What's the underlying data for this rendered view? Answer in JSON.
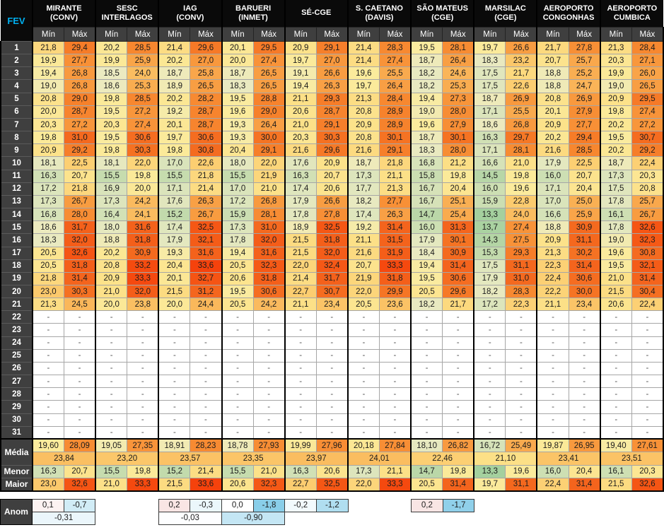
{
  "header": {
    "month_label": "FEV",
    "min_label": "Mín",
    "max_label": "Máx",
    "stations": [
      {
        "lines": [
          "MIRANTE",
          "(CONV)"
        ]
      },
      {
        "lines": [
          "SESC",
          "INTERLAGOS"
        ]
      },
      {
        "lines": [
          "IAG",
          "(CONV)"
        ]
      },
      {
        "lines": [
          "BARUERI",
          "(INMET)"
        ]
      },
      {
        "lines": [
          "SÉ-CGE"
        ]
      },
      {
        "lines": [
          "S. CAETANO",
          "(DAVIS)"
        ]
      },
      {
        "lines": [
          "SÃO MATEUS",
          "(CGE)"
        ]
      },
      {
        "lines": [
          "MARSILAC",
          "(CGE)"
        ]
      },
      {
        "lines": [
          "AEROPORTO",
          "CONGONHAS"
        ]
      },
      {
        "lines": [
          "AEROPORTO",
          "CUMBICA"
        ]
      }
    ]
  },
  "dash": "-",
  "rows": [
    {
      "d": "1",
      "v": [
        "21,8",
        "29,4",
        "20,2",
        "28,5",
        "21,4",
        "29,6",
        "20,1",
        "29,5",
        "20,9",
        "29,1",
        "21,4",
        "28,3",
        "19,5",
        "28,1",
        "19,7",
        "26,6",
        "21,7",
        "27,8",
        "21,3",
        "28,4"
      ]
    },
    {
      "d": "2",
      "v": [
        "19,9",
        "27,7",
        "19,9",
        "25,9",
        "20,2",
        "27,0",
        "20,0",
        "27,4",
        "19,7",
        "27,0",
        "21,4",
        "27,4",
        "18,7",
        "26,4",
        "18,3",
        "23,2",
        "20,7",
        "25,7",
        "20,3",
        "27,1"
      ]
    },
    {
      "d": "3",
      "v": [
        "19,4",
        "26,8",
        "18,5",
        "24,0",
        "18,7",
        "25,8",
        "18,7",
        "26,5",
        "19,1",
        "26,6",
        "19,6",
        "25,5",
        "18,2",
        "24,6",
        "17,5",
        "21,7",
        "18,8",
        "25,2",
        "19,9",
        "26,0"
      ]
    },
    {
      "d": "4",
      "v": [
        "19,0",
        "26,8",
        "18,6",
        "25,3",
        "18,9",
        "26,5",
        "18,3",
        "26,5",
        "19,4",
        "26,3",
        "19,7",
        "26,4",
        "18,2",
        "25,3",
        "17,5",
        "22,6",
        "18,8",
        "24,7",
        "19,0",
        "26,5"
      ]
    },
    {
      "d": "5",
      "v": [
        "20,8",
        "29,0",
        "19,8",
        "28,5",
        "20,2",
        "28,2",
        "19,5",
        "28,8",
        "21,1",
        "29,3",
        "21,3",
        "28,4",
        "19,4",
        "27,3",
        "18,7",
        "26,9",
        "20,8",
        "26,9",
        "20,9",
        "29,5"
      ]
    },
    {
      "d": "6",
      "v": [
        "20,0",
        "28,7",
        "19,5",
        "27,2",
        "19,2",
        "28,7",
        "19,6",
        "29,0",
        "20,6",
        "28,7",
        "20,8",
        "28,9",
        "19,0",
        "28,0",
        "17,1",
        "25,5",
        "20,1",
        "27,9",
        "19,8",
        "27,4"
      ]
    },
    {
      "d": "7",
      "v": [
        "20,3",
        "27,2",
        "20,3",
        "27,4",
        "20,1",
        "28,7",
        "19,3",
        "26,4",
        "21,0",
        "29,1",
        "20,9",
        "28,9",
        "19,6",
        "27,9",
        "18,6",
        "26,8",
        "20,9",
        "27,7",
        "20,2",
        "27,2"
      ]
    },
    {
      "d": "8",
      "v": [
        "19,8",
        "31,0",
        "19,5",
        "30,6",
        "19,7",
        "30,6",
        "19,3",
        "30,0",
        "20,3",
        "30,3",
        "20,8",
        "30,1",
        "18,7",
        "30,1",
        "16,3",
        "29,7",
        "20,2",
        "29,4",
        "19,5",
        "30,7"
      ]
    },
    {
      "d": "9",
      "v": [
        "20,9",
        "29,2",
        "19,8",
        "30,3",
        "19,8",
        "30,8",
        "20,4",
        "29,1",
        "21,6",
        "29,6",
        "21,6",
        "29,1",
        "18,3",
        "28,0",
        "17,1",
        "28,1",
        "21,6",
        "28,5",
        "20,2",
        "29,2"
      ]
    },
    {
      "d": "10",
      "v": [
        "18,1",
        "22,5",
        "18,1",
        "22,0",
        "17,0",
        "22,6",
        "18,0",
        "22,0",
        "17,6",
        "20,9",
        "18,7",
        "21,8",
        "16,8",
        "21,2",
        "16,6",
        "21,0",
        "17,9",
        "22,5",
        "18,7",
        "22,4"
      ]
    },
    {
      "d": "11",
      "v": [
        "16,3",
        "20,7",
        "15,5",
        "19,8",
        "15,5",
        "21,8",
        "15,5",
        "21,9",
        "16,3",
        "20,7",
        "17,3",
        "21,1",
        "15,8",
        "19,8",
        "14,5",
        "19,8",
        "16,0",
        "20,7",
        "17,3",
        "20,3"
      ]
    },
    {
      "d": "12",
      "v": [
        "17,2",
        "21,8",
        "16,9",
        "20,0",
        "17,1",
        "21,4",
        "17,0",
        "21,0",
        "17,4",
        "20,6",
        "17,7",
        "21,3",
        "16,7",
        "20,4",
        "16,0",
        "19,6",
        "17,1",
        "20,4",
        "17,5",
        "20,8"
      ]
    },
    {
      "d": "13",
      "v": [
        "17,3",
        "26,7",
        "17,3",
        "24,2",
        "17,6",
        "26,3",
        "17,2",
        "26,8",
        "17,9",
        "26,6",
        "18,2",
        "27,7",
        "16,7",
        "25,1",
        "15,9",
        "22,8",
        "17,0",
        "25,0",
        "17,8",
        "25,7"
      ]
    },
    {
      "d": "14",
      "v": [
        "16,8",
        "28,0",
        "16,4",
        "24,1",
        "15,2",
        "26,7",
        "15,9",
        "28,1",
        "17,8",
        "27,8",
        "17,4",
        "26,3",
        "14,7",
        "25,4",
        "13,3",
        "24,0",
        "16,6",
        "25,9",
        "16,1",
        "26,7"
      ]
    },
    {
      "d": "15",
      "v": [
        "18,6",
        "31,7",
        "18,0",
        "31,6",
        "17,4",
        "32,5",
        "17,3",
        "31,0",
        "18,9",
        "32,5",
        "19,2",
        "31,4",
        "16,0",
        "31,3",
        "13,7",
        "27,4",
        "18,8",
        "30,9",
        "17,8",
        "32,6"
      ]
    },
    {
      "d": "16",
      "v": [
        "18,3",
        "32,0",
        "18,8",
        "31,8",
        "17,9",
        "32,1",
        "17,8",
        "32,0",
        "21,5",
        "31,8",
        "21,1",
        "31,5",
        "17,9",
        "30,1",
        "14,3",
        "27,5",
        "20,9",
        "31,1",
        "19,0",
        "32,3"
      ]
    },
    {
      "d": "17",
      "v": [
        "20,5",
        "32,6",
        "20,2",
        "30,9",
        "19,3",
        "31,6",
        "19,4",
        "31,6",
        "21,5",
        "32,0",
        "21,6",
        "31,9",
        "18,4",
        "30,9",
        "15,3",
        "29,3",
        "21,3",
        "30,2",
        "19,6",
        "30,8"
      ]
    },
    {
      "d": "18",
      "v": [
        "20,5",
        "31,8",
        "20,8",
        "33,2",
        "20,4",
        "33,6",
        "20,5",
        "32,3",
        "22,0",
        "32,4",
        "20,7",
        "33,3",
        "19,4",
        "31,4",
        "17,5",
        "31,1",
        "22,3",
        "31,4",
        "19,5",
        "32,1"
      ]
    },
    {
      "d": "19",
      "v": [
        "21,8",
        "31,4",
        "20,9",
        "33,3",
        "20,1",
        "32,7",
        "20,6",
        "31,8",
        "21,4",
        "31,7",
        "21,9",
        "31,8",
        "19,5",
        "30,6",
        "17,9",
        "31,0",
        "22,4",
        "30,6",
        "21,0",
        "31,4"
      ]
    },
    {
      "d": "20",
      "v": [
        "23,0",
        "30,3",
        "21,0",
        "32,0",
        "21,5",
        "31,2",
        "19,5",
        "30,6",
        "22,7",
        "30,7",
        "22,0",
        "29,9",
        "20,5",
        "29,6",
        "18,2",
        "28,3",
        "22,2",
        "30,0",
        "21,5",
        "30,4"
      ]
    },
    {
      "d": "21",
      "v": [
        "21,3",
        "24,5",
        "20,0",
        "23,8",
        "20,0",
        "24,4",
        "20,5",
        "24,2",
        "21,1",
        "23,4",
        "20,5",
        "23,6",
        "18,2",
        "21,7",
        "17,2",
        "22,3",
        "21,1",
        "23,4",
        "20,6",
        "22,4"
      ]
    },
    {
      "d": "22",
      "v": null
    },
    {
      "d": "23",
      "v": null
    },
    {
      "d": "24",
      "v": null
    },
    {
      "d": "25",
      "v": null
    },
    {
      "d": "26",
      "v": null
    },
    {
      "d": "27",
      "v": null
    },
    {
      "d": "28",
      "v": null
    },
    {
      "d": "29",
      "v": null
    },
    {
      "d": "30",
      "v": null
    },
    {
      "d": "31",
      "v": null
    }
  ],
  "summary": {
    "media_label": "Média",
    "menor_label": "Menor",
    "maior_label": "Maior",
    "media_pairs": [
      [
        "19,60",
        "28,09"
      ],
      [
        "19,05",
        "27,35"
      ],
      [
        "18,91",
        "28,23"
      ],
      [
        "18,78",
        "27,93"
      ],
      [
        "19,99",
        "27,96"
      ],
      [
        "20,18",
        "27,84"
      ],
      [
        "18,10",
        "26,82"
      ],
      [
        "16,72",
        "25,49"
      ],
      [
        "19,87",
        "26,95"
      ],
      [
        "19,40",
        "27,61"
      ]
    ],
    "media_overall": [
      "23,84",
      "23,20",
      "23,57",
      "23,35",
      "23,97",
      "24,01",
      "22,46",
      "21,10",
      "23,41",
      "23,51"
    ],
    "menor": [
      [
        "16,3",
        "20,7"
      ],
      [
        "15,5",
        "19,8"
      ],
      [
        "15,2",
        "21,4"
      ],
      [
        "15,5",
        "21,0"
      ],
      [
        "16,3",
        "20,6"
      ],
      [
        "17,3",
        "21,1"
      ],
      [
        "14,7",
        "19,8"
      ],
      [
        "13,3",
        "19,6"
      ],
      [
        "16,0",
        "20,4"
      ],
      [
        "16,1",
        "20,3"
      ]
    ],
    "maior": [
      [
        "23,0",
        "32,6"
      ],
      [
        "21,0",
        "33,3"
      ],
      [
        "21,5",
        "33,6"
      ],
      [
        "20,6",
        "32,3"
      ],
      [
        "22,7",
        "32,5"
      ],
      [
        "22,0",
        "33,3"
      ],
      [
        "20,5",
        "31,4"
      ],
      [
        "19,7",
        "31,1"
      ],
      [
        "22,4",
        "31,4"
      ],
      [
        "21,5",
        "32,6"
      ]
    ]
  },
  "anomaly": {
    "label": "Anom",
    "groups": [
      {
        "station": 0,
        "min": "0,1",
        "max": "-0,7",
        "mean": "-0,31"
      },
      {
        "station": 2,
        "min": "0,2",
        "max": "-0,3",
        "mean": "-0,03"
      },
      {
        "station": 3,
        "min": "0,0",
        "max": "-1,8",
        "mean": "-0,90"
      },
      {
        "station": 4,
        "min": "-0,2",
        "max": "-1,2",
        "mean": null
      },
      {
        "station": 6,
        "min": "0,2",
        "max": "-1,7",
        "mean": null
      }
    ]
  },
  "colors": {
    "fev_accent": "#00B0F0",
    "header_bg": "#0a0a0a",
    "label_bg": "#3F3F3F",
    "grid_line": "#A6A6A6",
    "temp_scale": [
      [
        13.0,
        "#9FCE9C"
      ],
      [
        15.0,
        "#BFD9AA"
      ],
      [
        17.0,
        "#DAE4BB"
      ],
      [
        18.5,
        "#EBEAC1"
      ],
      [
        19.6,
        "#FBEB9C"
      ],
      [
        21.0,
        "#FCE189"
      ],
      [
        22.5,
        "#FCCF72"
      ],
      [
        24.0,
        "#FABD60"
      ],
      [
        25.5,
        "#F9AA4E"
      ],
      [
        27.0,
        "#F8983D"
      ],
      [
        28.5,
        "#F7872F"
      ],
      [
        30.0,
        "#F57424"
      ],
      [
        31.5,
        "#F4631C"
      ],
      [
        32.8,
        "#F55313"
      ],
      [
        33.8,
        "#F53E0A"
      ]
    ],
    "anom_neg_anchor": [
      -2.0,
      "#7CC8E6"
    ],
    "anom_pos_anchor": [
      0.5,
      "#EFBFBB"
    ],
    "anom_zero": "#FFFFFF"
  },
  "layout": {
    "label_col_width": 45,
    "data_col_width": 44.7
  }
}
